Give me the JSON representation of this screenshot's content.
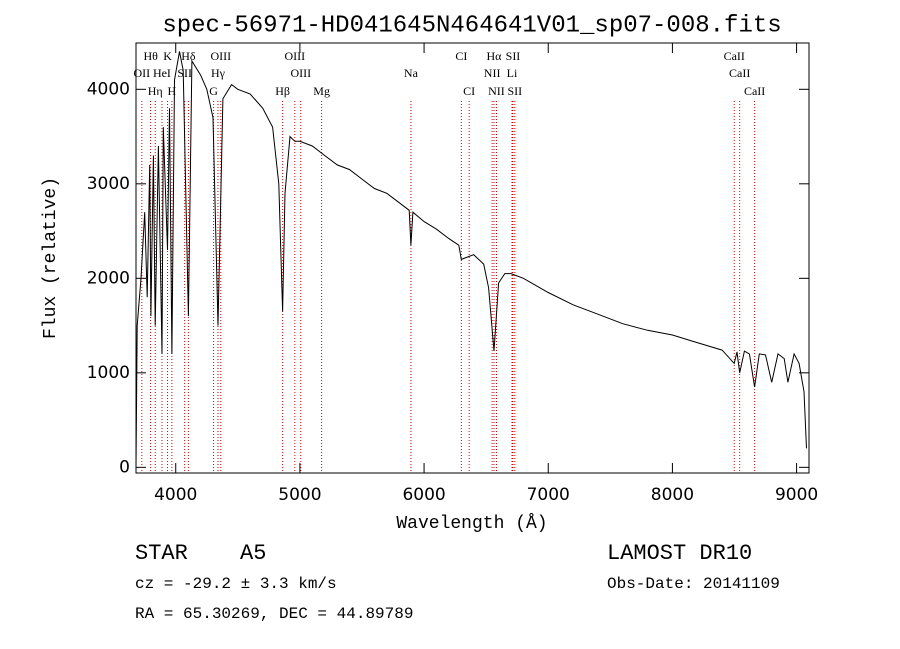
{
  "chart_data": {
    "type": "line",
    "title": "spec-56971-HD041645N464641V01_sp07-008.fits",
    "x_label": "Wavelength (Å)",
    "y_label": "Flux (relative)",
    "color": "#000000",
    "xlim": [
      3680,
      9100
    ],
    "ylim": [
      -60,
      4490
    ],
    "xticks": [
      4000,
      5000,
      6000,
      7000,
      8000,
      9000
    ],
    "yticks": [
      0,
      1000,
      2000,
      3000,
      4000
    ],
    "x": [
      3680,
      3690,
      3720,
      3750,
      3770,
      3790,
      3800,
      3820,
      3835,
      3860,
      3889,
      3900,
      3934,
      3950,
      3969,
      3990,
      4030,
      4060,
      4102,
      4130,
      4200,
      4250,
      4300,
      4340,
      4380,
      4450,
      4500,
      4600,
      4700,
      4780,
      4830,
      4861,
      4880,
      4920,
      4960,
      5000,
      5100,
      5200,
      5300,
      5400,
      5500,
      5600,
      5700,
      5800,
      5880,
      5894,
      5910,
      6000,
      6100,
      6200,
      6280,
      6300,
      6400,
      6480,
      6520,
      6563,
      6600,
      6650,
      6700,
      6800,
      7000,
      7200,
      7400,
      7600,
      7800,
      8000,
      8200,
      8400,
      8498,
      8520,
      8542,
      8580,
      8620,
      8662,
      8700,
      8750,
      8800,
      8850,
      8900,
      8930,
      8980,
      9020,
      9060,
      9080
    ],
    "values": [
      0,
      1500,
      2000,
      2700,
      1800,
      3200,
      1600,
      3300,
      1500,
      3400,
      1200,
      3600,
      2300,
      3800,
      1200,
      4100,
      4400,
      4200,
      1600,
      4300,
      4150,
      4000,
      3700,
      1500,
      3900,
      4050,
      4000,
      3950,
      3800,
      3600,
      3000,
      1650,
      2900,
      3500,
      3450,
      3450,
      3400,
      3300,
      3200,
      3150,
      3050,
      2950,
      2900,
      2800,
      2720,
      2350,
      2700,
      2600,
      2520,
      2420,
      2350,
      2200,
      2250,
      2150,
      1900,
      1230,
      1950,
      2050,
      2050,
      2000,
      1850,
      1720,
      1620,
      1520,
      1450,
      1400,
      1320,
      1240,
      1100,
      1220,
      1000,
      1230,
      1200,
      850,
      1200,
      1190,
      900,
      1200,
      1150,
      900,
      1200,
      1100,
      800,
      200
    ],
    "line_color": "#cc0000",
    "lines": [
      {
        "wavelength": 3798,
        "label": "Hθ"
      },
      {
        "wavelength": 3727,
        "label": "OII"
      },
      {
        "wavelength": 3835,
        "label": "Hη"
      },
      {
        "wavelength": 3934,
        "label": "K"
      },
      {
        "wavelength": 3889,
        "label": "HeI"
      },
      {
        "wavelength": 3969,
        "label": "H"
      },
      {
        "wavelength": 4102,
        "label": "Hδ"
      },
      {
        "wavelength": 4072,
        "label": "SII"
      },
      {
        "wavelength": 4305,
        "label": "G"
      },
      {
        "wavelength": 4363,
        "label": "OIII"
      },
      {
        "wavelength": 4340,
        "label": "Hγ"
      },
      {
        "wavelength": 4861,
        "label": "Hβ"
      },
      {
        "wavelength": 4959,
        "label": "OIII"
      },
      {
        "wavelength": 5007,
        "label": "OIII"
      },
      {
        "wavelength": 5175,
        "label": "Mg"
      },
      {
        "wavelength": 6300,
        "label": "CI"
      },
      {
        "wavelength": 5894,
        "label": "Na"
      },
      {
        "wavelength": 6363,
        "label": "CI"
      },
      {
        "wavelength": 6563,
        "label": "Hα"
      },
      {
        "wavelength": 6548,
        "label": "NII"
      },
      {
        "wavelength": 6583,
        "label": "NII"
      },
      {
        "wavelength": 6716,
        "label": "SII"
      },
      {
        "wavelength": 6708,
        "label": "Li"
      },
      {
        "wavelength": 6731,
        "label": "SII"
      },
      {
        "wavelength": 8498,
        "label": "CaII"
      },
      {
        "wavelength": 8542,
        "label": "CaII"
      },
      {
        "wavelength": 8662,
        "label": "CaII"
      }
    ]
  },
  "footer": {
    "object_class": "STAR",
    "subclass": "A5",
    "survey": "LAMOST DR10",
    "redshift": "cz = -29.2 ± 3.3 km/s",
    "obs_date": "Obs-Date: 20141109",
    "coords": "RA =  65.30269, DEC =  44.89789"
  }
}
